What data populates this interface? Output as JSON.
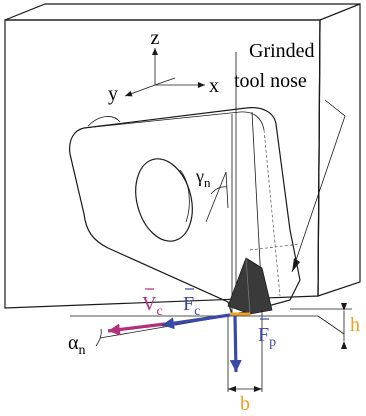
{
  "axes": {
    "z": "z",
    "y": "y",
    "x": "x"
  },
  "callout": {
    "line1": "Grinded",
    "line2": "tool nose"
  },
  "labels": {
    "gamma": "γ",
    "gamma_sub": "n",
    "alpha": "α",
    "alpha_sub": "n",
    "vc_base": "V",
    "vc_sub": "c",
    "fc_base": "F",
    "fc_sub": "c",
    "fp_base": "F",
    "fp_sub": "p",
    "h": "h",
    "b": "b"
  },
  "colors": {
    "vc": "#b5307a",
    "fc": "#3b49a6",
    "fp": "#3b49a6",
    "dim": "#f0a020",
    "outline": "#1a1a1a",
    "nose_fill": "#3a3a3a"
  }
}
